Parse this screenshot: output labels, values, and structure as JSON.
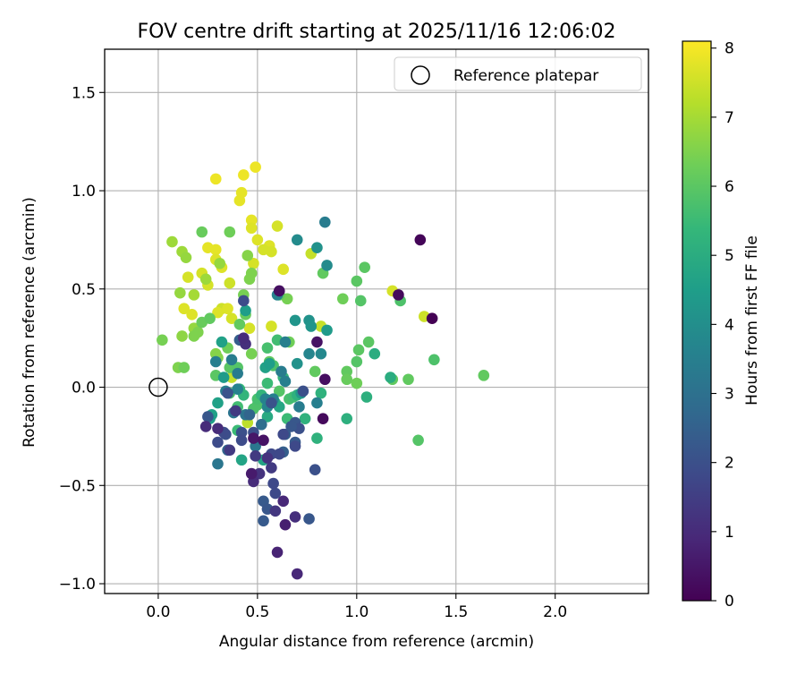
{
  "chart_data": {
    "type": "scatter",
    "title": "FOV centre drift starting at 2025/11/16 12:06:02",
    "xlabel": "Angular distance from reference (arcmin)",
    "ylabel": "Rotation from reference (arcmin)",
    "xlim": [
      -0.27,
      2.47
    ],
    "ylim": [
      -1.05,
      1.72
    ],
    "xticks": [
      0.0,
      0.5,
      1.0,
      1.5,
      2.0
    ],
    "yticks": [
      -1.0,
      -0.5,
      0.0,
      0.5,
      1.0,
      1.5
    ],
    "grid": true,
    "legend": {
      "position": "top-right",
      "entries": [
        "Reference platepar"
      ]
    },
    "reference_point": {
      "x": 0.0,
      "y": 0.0,
      "label": "Reference platepar"
    },
    "colorbar": {
      "label": "Hours from first FF file",
      "min": 0.0,
      "max": 8.1,
      "ticks": [
        0,
        1,
        2,
        3,
        4,
        5,
        6,
        7,
        8
      ],
      "colormap": "viridis",
      "colors": [
        "#440154",
        "#482878",
        "#3e4989",
        "#31688e",
        "#26828e",
        "#1f9e89",
        "#35b779",
        "#6ece58",
        "#b5de2b",
        "#fde725"
      ]
    },
    "points": [
      {
        "x": 0.29,
        "y": 1.06,
        "h": 7.9
      },
      {
        "x": 0.43,
        "y": 1.08,
        "h": 7.9
      },
      {
        "x": 0.49,
        "y": 1.12,
        "h": 7.9
      },
      {
        "x": 0.42,
        "y": 0.99,
        "h": 7.8
      },
      {
        "x": 0.41,
        "y": 0.95,
        "h": 7.8
      },
      {
        "x": 0.47,
        "y": 0.85,
        "h": 7.8
      },
      {
        "x": 0.47,
        "y": 0.81,
        "h": 7.7
      },
      {
        "x": 0.6,
        "y": 0.82,
        "h": 7.6
      },
      {
        "x": 0.5,
        "y": 0.75,
        "h": 7.7
      },
      {
        "x": 0.56,
        "y": 0.72,
        "h": 7.7
      },
      {
        "x": 0.53,
        "y": 0.7,
        "h": 7.6
      },
      {
        "x": 0.57,
        "y": 0.69,
        "h": 7.6
      },
      {
        "x": 0.25,
        "y": 0.71,
        "h": 7.8
      },
      {
        "x": 0.29,
        "y": 0.7,
        "h": 7.8
      },
      {
        "x": 0.29,
        "y": 0.65,
        "h": 7.7
      },
      {
        "x": 0.32,
        "y": 0.61,
        "h": 7.7
      },
      {
        "x": 0.48,
        "y": 0.63,
        "h": 7.6
      },
      {
        "x": 0.63,
        "y": 0.6,
        "h": 7.7
      },
      {
        "x": 0.77,
        "y": 0.68,
        "h": 7.4
      },
      {
        "x": 0.22,
        "y": 0.58,
        "h": 7.6
      },
      {
        "x": 0.15,
        "y": 0.56,
        "h": 7.6
      },
      {
        "x": 0.25,
        "y": 0.52,
        "h": 7.6
      },
      {
        "x": 0.36,
        "y": 0.53,
        "h": 7.5
      },
      {
        "x": 0.32,
        "y": 0.4,
        "h": 7.5
      },
      {
        "x": 0.13,
        "y": 0.4,
        "h": 7.7
      },
      {
        "x": 0.17,
        "y": 0.37,
        "h": 7.7
      },
      {
        "x": 0.3,
        "y": 0.38,
        "h": 7.7
      },
      {
        "x": 0.35,
        "y": 0.4,
        "h": 7.7
      },
      {
        "x": 0.37,
        "y": 0.35,
        "h": 7.6
      },
      {
        "x": 0.46,
        "y": 0.3,
        "h": 7.6
      },
      {
        "x": 0.57,
        "y": 0.31,
        "h": 7.6
      },
      {
        "x": 1.18,
        "y": 0.49,
        "h": 7.6
      },
      {
        "x": 1.34,
        "y": 0.36,
        "h": 7.5
      },
      {
        "x": 0.82,
        "y": 0.31,
        "h": 7.4
      },
      {
        "x": 0.37,
        "y": 0.05,
        "h": 7.4
      },
      {
        "x": 0.45,
        "y": -0.18,
        "h": 7.3
      },
      {
        "x": 0.07,
        "y": 0.74,
        "h": 6.9
      },
      {
        "x": 0.12,
        "y": 0.69,
        "h": 6.9
      },
      {
        "x": 0.14,
        "y": 0.66,
        "h": 6.8
      },
      {
        "x": 0.18,
        "y": 0.47,
        "h": 7.0
      },
      {
        "x": 0.11,
        "y": 0.48,
        "h": 6.8
      },
      {
        "x": 0.24,
        "y": 0.55,
        "h": 6.9
      },
      {
        "x": 0.31,
        "y": 0.63,
        "h": 6.8
      },
      {
        "x": 0.36,
        "y": 0.79,
        "h": 6.3
      },
      {
        "x": 0.45,
        "y": 0.67,
        "h": 6.6
      },
      {
        "x": 0.47,
        "y": 0.58,
        "h": 6.5
      },
      {
        "x": 0.46,
        "y": 0.55,
        "h": 6.5
      },
      {
        "x": 0.43,
        "y": 0.47,
        "h": 6.4
      },
      {
        "x": 0.18,
        "y": 0.3,
        "h": 6.8
      },
      {
        "x": 0.12,
        "y": 0.26,
        "h": 6.7
      },
      {
        "x": 0.18,
        "y": 0.26,
        "h": 6.5
      },
      {
        "x": 0.2,
        "y": 0.28,
        "h": 6.5
      },
      {
        "x": 0.02,
        "y": 0.24,
        "h": 6.4
      },
      {
        "x": 0.1,
        "y": 0.1,
        "h": 6.5
      },
      {
        "x": 0.13,
        "y": 0.1,
        "h": 6.3
      },
      {
        "x": 0.29,
        "y": 0.17,
        "h": 6.6
      },
      {
        "x": 0.3,
        "y": 0.15,
        "h": 6.6
      },
      {
        "x": 0.35,
        "y": 0.2,
        "h": 6.3
      },
      {
        "x": 0.44,
        "y": 0.37,
        "h": 6.2
      },
      {
        "x": 0.47,
        "y": 0.17,
        "h": 6.4
      },
      {
        "x": 0.65,
        "y": 0.45,
        "h": 6.4
      },
      {
        "x": 0.66,
        "y": 0.23,
        "h": 6.3
      },
      {
        "x": 0.22,
        "y": 0.79,
        "h": 6.2
      },
      {
        "x": 0.22,
        "y": 0.33,
        "h": 6.2
      },
      {
        "x": 0.26,
        "y": 0.35,
        "h": 6.1
      },
      {
        "x": 0.29,
        "y": 0.06,
        "h": 6.0
      },
      {
        "x": 0.36,
        "y": 0.1,
        "h": 6.0
      },
      {
        "x": 0.4,
        "y": 0.1,
        "h": 5.9
      },
      {
        "x": 0.41,
        "y": 0.32,
        "h": 6.1
      },
      {
        "x": 0.56,
        "y": 0.13,
        "h": 6.1
      },
      {
        "x": 0.61,
        "y": 0.47,
        "h": 6.1
      },
      {
        "x": 0.79,
        "y": 0.08,
        "h": 6.1
      },
      {
        "x": 0.83,
        "y": 0.58,
        "h": 6.1
      },
      {
        "x": 0.93,
        "y": 0.45,
        "h": 6.3
      },
      {
        "x": 0.95,
        "y": 0.08,
        "h": 6.1
      },
      {
        "x": 0.95,
        "y": 0.04,
        "h": 6.2
      },
      {
        "x": 1.0,
        "y": 0.54,
        "h": 6.0
      },
      {
        "x": 1.01,
        "y": 0.19,
        "h": 6.0
      },
      {
        "x": 1.0,
        "y": 0.13,
        "h": 5.9
      },
      {
        "x": 1.0,
        "y": 0.02,
        "h": 6.3
      },
      {
        "x": 1.02,
        "y": 0.44,
        "h": 5.9
      },
      {
        "x": 1.04,
        "y": 0.61,
        "h": 6.0
      },
      {
        "x": 1.06,
        "y": 0.23,
        "h": 6.0
      },
      {
        "x": 1.18,
        "y": 0.04,
        "h": 6.1
      },
      {
        "x": 1.22,
        "y": 0.44,
        "h": 5.8
      },
      {
        "x": 1.26,
        "y": 0.04,
        "h": 6.1
      },
      {
        "x": 1.31,
        "y": -0.27,
        "h": 5.9
      },
      {
        "x": 1.39,
        "y": 0.14,
        "h": 5.8
      },
      {
        "x": 1.64,
        "y": 0.06,
        "h": 6.1
      },
      {
        "x": 0.5,
        "y": -0.09,
        "h": 5.8
      },
      {
        "x": 0.55,
        "y": 0.2,
        "h": 5.7
      },
      {
        "x": 0.58,
        "y": 0.11,
        "h": 5.8
      },
      {
        "x": 0.61,
        "y": -0.02,
        "h": 5.9
      },
      {
        "x": 0.6,
        "y": 0.24,
        "h": 5.6
      },
      {
        "x": 0.55,
        "y": 0.02,
        "h": 5.5
      },
      {
        "x": 0.66,
        "y": -0.06,
        "h": 5.7
      },
      {
        "x": 0.68,
        "y": -0.05,
        "h": 5.6
      },
      {
        "x": 0.65,
        "y": -0.16,
        "h": 5.5
      },
      {
        "x": 0.36,
        "y": -0.03,
        "h": 5.7
      },
      {
        "x": 0.4,
        "y": -0.1,
        "h": 5.6
      },
      {
        "x": 0.48,
        "y": -0.11,
        "h": 5.8
      },
      {
        "x": 0.5,
        "y": -0.06,
        "h": 5.7
      },
      {
        "x": 0.41,
        "y": -0.01,
        "h": 5.4
      },
      {
        "x": 0.4,
        "y": -0.22,
        "h": 5.5
      },
      {
        "x": 0.43,
        "y": -0.04,
        "h": 5.3
      },
      {
        "x": 0.52,
        "y": -0.04,
        "h": 5.3
      },
      {
        "x": 0.59,
        "y": -0.08,
        "h": 5.3
      },
      {
        "x": 0.63,
        "y": 0.05,
        "h": 5.3
      },
      {
        "x": 0.7,
        "y": -0.04,
        "h": 5.2
      },
      {
        "x": 0.74,
        "y": -0.16,
        "h": 5.2
      },
      {
        "x": 0.8,
        "y": -0.26,
        "h": 5.2
      },
      {
        "x": 0.82,
        "y": -0.03,
        "h": 5.2
      },
      {
        "x": 0.95,
        "y": -0.16,
        "h": 5.1
      },
      {
        "x": 1.05,
        "y": -0.05,
        "h": 5.1
      },
      {
        "x": 1.09,
        "y": 0.17,
        "h": 5.0
      },
      {
        "x": 1.17,
        "y": 0.05,
        "h": 5.0
      },
      {
        "x": 0.55,
        "y": -0.15,
        "h": 4.9
      },
      {
        "x": 0.53,
        "y": -0.37,
        "h": 4.7
      },
      {
        "x": 0.54,
        "y": 0.1,
        "h": 4.6
      },
      {
        "x": 0.61,
        "y": -0.1,
        "h": 4.8
      },
      {
        "x": 0.27,
        "y": -0.14,
        "h": 4.6
      },
      {
        "x": 0.26,
        "y": -0.16,
        "h": 4.5
      },
      {
        "x": 0.3,
        "y": -0.08,
        "h": 4.6
      },
      {
        "x": 0.32,
        "y": 0.23,
        "h": 4.6
      },
      {
        "x": 0.33,
        "y": 0.05,
        "h": 4.4
      },
      {
        "x": 0.42,
        "y": -0.37,
        "h": 4.7
      },
      {
        "x": 0.44,
        "y": 0.39,
        "h": 4.5
      },
      {
        "x": 0.56,
        "y": 0.12,
        "h": 4.5
      },
      {
        "x": 0.69,
        "y": 0.34,
        "h": 4.2
      },
      {
        "x": 0.7,
        "y": 0.12,
        "h": 4.1
      },
      {
        "x": 0.72,
        "y": -0.03,
        "h": 4.3
      },
      {
        "x": 0.76,
        "y": 0.34,
        "h": 4.1
      },
      {
        "x": 0.77,
        "y": 0.31,
        "h": 4.2
      },
      {
        "x": 0.8,
        "y": 0.71,
        "h": 4.1
      },
      {
        "x": 0.85,
        "y": 0.29,
        "h": 4.4
      },
      {
        "x": 0.7,
        "y": 0.75,
        "h": 3.9
      },
      {
        "x": 0.84,
        "y": 0.84,
        "h": 3.4
      },
      {
        "x": 0.85,
        "y": 0.62,
        "h": 3.9
      },
      {
        "x": 0.76,
        "y": 0.17,
        "h": 3.7
      },
      {
        "x": 0.82,
        "y": 0.17,
        "h": 3.8
      },
      {
        "x": 0.6,
        "y": 0.47,
        "h": 3.6
      },
      {
        "x": 0.64,
        "y": 0.23,
        "h": 3.5
      },
      {
        "x": 0.62,
        "y": 0.08,
        "h": 3.4
      },
      {
        "x": 0.64,
        "y": 0.03,
        "h": 3.5
      },
      {
        "x": 0.71,
        "y": -0.1,
        "h": 3.4
      },
      {
        "x": 0.54,
        "y": -0.06,
        "h": 3.6
      },
      {
        "x": 0.55,
        "y": -0.1,
        "h": 3.7
      },
      {
        "x": 0.58,
        "y": -0.06,
        "h": 3.5
      },
      {
        "x": 0.4,
        "y": -0.01,
        "h": 3.6
      },
      {
        "x": 0.37,
        "y": 0.14,
        "h": 3.4
      },
      {
        "x": 0.4,
        "y": 0.07,
        "h": 3.4
      },
      {
        "x": 0.29,
        "y": 0.13,
        "h": 3.5
      },
      {
        "x": 0.34,
        "y": -0.02,
        "h": 3.4
      },
      {
        "x": 0.8,
        "y": -0.08,
        "h": 3.5
      },
      {
        "x": 0.3,
        "y": -0.39,
        "h": 3.2
      },
      {
        "x": 0.38,
        "y": -0.13,
        "h": 3.1
      },
      {
        "x": 0.44,
        "y": -0.14,
        "h": 3.1
      },
      {
        "x": 0.49,
        "y": -0.3,
        "h": 3.2
      },
      {
        "x": 0.52,
        "y": -0.19,
        "h": 2.9
      },
      {
        "x": 0.46,
        "y": -0.14,
        "h": 2.6
      },
      {
        "x": 0.35,
        "y": -0.32,
        "h": 2.6
      },
      {
        "x": 0.63,
        "y": -0.33,
        "h": 2.4
      },
      {
        "x": 0.64,
        "y": -0.24,
        "h": 2.4
      },
      {
        "x": 0.69,
        "y": -0.28,
        "h": 2.3
      },
      {
        "x": 0.69,
        "y": -0.18,
        "h": 2.2
      },
      {
        "x": 0.53,
        "y": -0.58,
        "h": 2.3
      },
      {
        "x": 0.53,
        "y": -0.68,
        "h": 2.3
      },
      {
        "x": 0.76,
        "y": -0.67,
        "h": 2.2
      },
      {
        "x": 0.55,
        "y": -0.62,
        "h": 2.2
      },
      {
        "x": 0.79,
        "y": -0.42,
        "h": 2.0
      },
      {
        "x": 0.71,
        "y": -0.21,
        "h": 2.0
      },
      {
        "x": 0.73,
        "y": -0.02,
        "h": 2.0
      },
      {
        "x": 0.67,
        "y": -0.2,
        "h": 2.2
      },
      {
        "x": 0.57,
        "y": -0.08,
        "h": 2.1
      },
      {
        "x": 0.42,
        "y": -0.23,
        "h": 2.0
      },
      {
        "x": 0.48,
        "y": -0.23,
        "h": 2.0
      },
      {
        "x": 0.34,
        "y": -0.24,
        "h": 2.0
      },
      {
        "x": 0.25,
        "y": -0.15,
        "h": 2.2
      },
      {
        "x": 0.35,
        "y": -0.03,
        "h": 2.1
      },
      {
        "x": 0.41,
        "y": 0.24,
        "h": 2.4
      },
      {
        "x": 0.43,
        "y": 0.44,
        "h": 1.9
      },
      {
        "x": 0.3,
        "y": -0.28,
        "h": 1.9
      },
      {
        "x": 0.33,
        "y": -0.23,
        "h": 1.9
      },
      {
        "x": 0.42,
        "y": -0.27,
        "h": 1.9
      },
      {
        "x": 0.57,
        "y": -0.34,
        "h": 1.8
      },
      {
        "x": 0.58,
        "y": -0.49,
        "h": 1.8
      },
      {
        "x": 0.59,
        "y": -0.54,
        "h": 1.8
      },
      {
        "x": 0.61,
        "y": -0.34,
        "h": 1.8
      },
      {
        "x": 0.69,
        "y": -0.3,
        "h": 1.8
      },
      {
        "x": 0.63,
        "y": -0.24,
        "h": 1.8
      },
      {
        "x": 0.36,
        "y": -0.32,
        "h": 1.4
      },
      {
        "x": 0.39,
        "y": -0.12,
        "h": 1.4
      },
      {
        "x": 0.49,
        "y": -0.35,
        "h": 1.4
      },
      {
        "x": 0.57,
        "y": -0.41,
        "h": 1.4
      },
      {
        "x": 0.59,
        "y": -0.63,
        "h": 1.3
      },
      {
        "x": 0.69,
        "y": -0.66,
        "h": 1.1
      },
      {
        "x": 0.55,
        "y": -0.36,
        "h": 1.2
      },
      {
        "x": 0.51,
        "y": -0.44,
        "h": 1.2
      },
      {
        "x": 0.48,
        "y": -0.48,
        "h": 1.0
      },
      {
        "x": 0.44,
        "y": 0.22,
        "h": 1.1
      },
      {
        "x": 0.43,
        "y": 0.25,
        "h": 1.0
      },
      {
        "x": 0.24,
        "y": -0.2,
        "h": 1.0
      },
      {
        "x": 0.3,
        "y": -0.21,
        "h": 1.0
      },
      {
        "x": 0.63,
        "y": -0.58,
        "h": 0.9
      },
      {
        "x": 0.6,
        "y": -0.84,
        "h": 0.8
      },
      {
        "x": 0.64,
        "y": -0.7,
        "h": 0.7
      },
      {
        "x": 0.7,
        "y": -0.95,
        "h": 0.9
      },
      {
        "x": 0.47,
        "y": -0.44,
        "h": 0.6
      },
      {
        "x": 0.48,
        "y": -0.26,
        "h": 0.5
      },
      {
        "x": 0.53,
        "y": -0.27,
        "h": 0.4
      },
      {
        "x": 0.61,
        "y": 0.49,
        "h": 0.3
      },
      {
        "x": 0.8,
        "y": 0.23,
        "h": 0.4
      },
      {
        "x": 0.84,
        "y": 0.04,
        "h": 0.3
      },
      {
        "x": 0.83,
        "y": -0.16,
        "h": 0.2
      },
      {
        "x": 1.21,
        "y": 0.47,
        "h": 0.2
      },
      {
        "x": 1.32,
        "y": 0.75,
        "h": 0.1
      },
      {
        "x": 1.38,
        "y": 0.35,
        "h": 0.0
      }
    ]
  }
}
